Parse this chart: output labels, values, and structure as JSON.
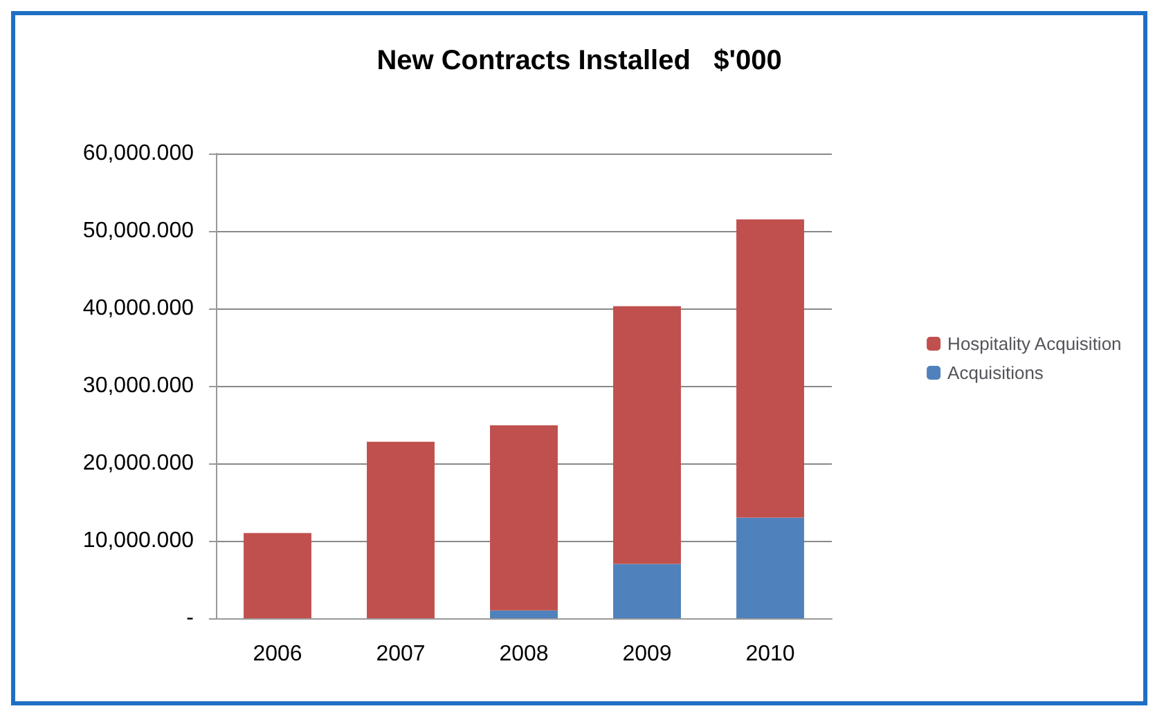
{
  "chart_data": {
    "type": "bar",
    "title": "New Contracts Installed   $'000",
    "categories": [
      "2006",
      "2007",
      "2008",
      "2009",
      "2010"
    ],
    "stacked": true,
    "series": [
      {
        "name": "Acquisitions",
        "color": "#4f81bd",
        "values": [
          0,
          0,
          1000,
          7000,
          13000
        ]
      },
      {
        "name": "Hospitality Acquisition",
        "color": "#c0504d",
        "values": [
          11000,
          22800,
          23900,
          33300,
          38500
        ]
      }
    ],
    "ylim": [
      0,
      60000
    ],
    "yticks": [
      {
        "value": 0,
        "label": "-"
      },
      {
        "value": 10000,
        "label": "10,000.000"
      },
      {
        "value": 20000,
        "label": "20,000.000"
      },
      {
        "value": 30000,
        "label": "30,000.000"
      },
      {
        "value": 40000,
        "label": "40,000.000"
      },
      {
        "value": 50000,
        "label": "50,000.000"
      },
      {
        "value": 60000,
        "label": "60,000.000"
      }
    ],
    "grid": true,
    "legend": "right"
  }
}
